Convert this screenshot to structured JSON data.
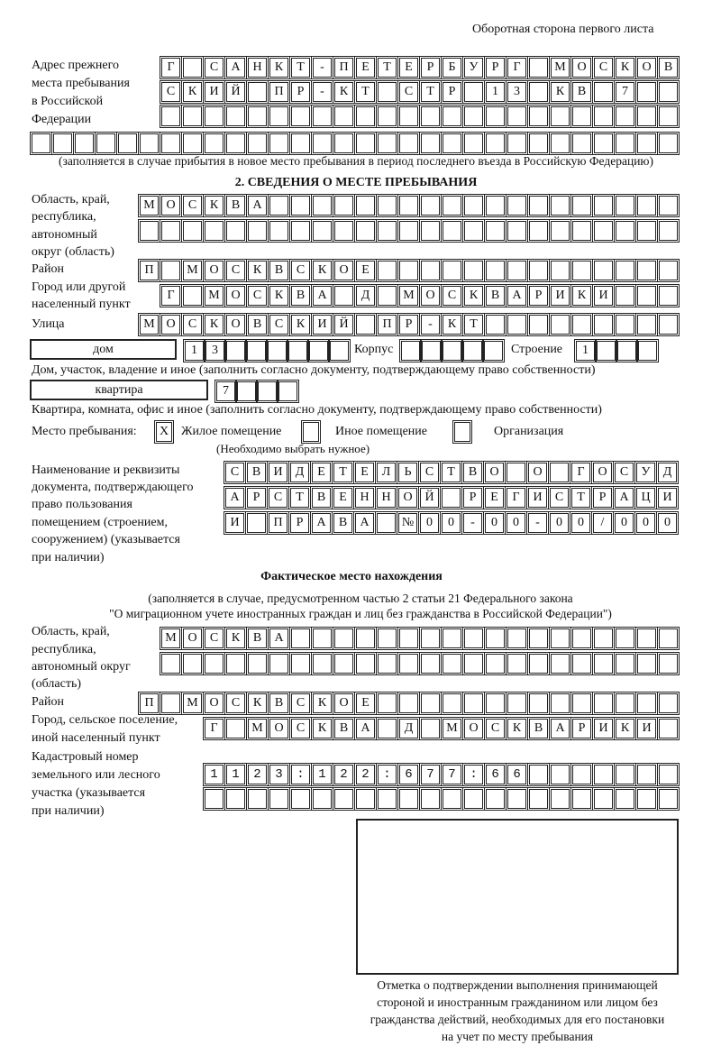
{
  "header": "Оборотная сторона первого листа",
  "prev_address": {
    "label": [
      "Адрес прежнего",
      "места пребывания",
      "в Российской",
      "Федерации"
    ],
    "rows": [
      "Г САНКТ-ПЕТЕРБУРГ МОСКОВ",
      "СКИЙ ПР-КТ СТР 13 КВ 7",
      "",
      ""
    ],
    "note": "(заполняется в случае прибытия в новое место пребывания в период последнего въезда в Российскую Федерацию)"
  },
  "stay": {
    "title": "2. СВЕДЕНИЯ О МЕСТЕ ПРЕБЫВАНИЯ",
    "region_label": [
      "Область, край,",
      "республика,",
      "автономный",
      "округ (область)"
    ],
    "region_rows": [
      "МОСКВА",
      ""
    ],
    "district_label": "Район",
    "district": "П МОСКВСКОЕ",
    "city_label": [
      "Город или другой",
      "населенный пункт"
    ],
    "city": "Г МОСКВА Д МОСКВАРИКИ",
    "street_label": "Улица",
    "street": "МОСКОВСКИЙ ПР-КТ",
    "house_type": "дом",
    "house": "13",
    "korpus_label": "Корпус",
    "korpus": "",
    "building_label": "Строение",
    "building": "1",
    "house_caption": "Дом, участок, владение и иное (заполнить согласно документу, подтверждающему право собственности)",
    "apt_type": "квартира",
    "apt": "7",
    "apt_caption": "Квартира, комната, офис и иное (заполнить согласно документу, подтверждающему право собственности)",
    "place_label": "Место пребывания:",
    "options": [
      {
        "label": "Жилое помещение",
        "checked": "X"
      },
      {
        "label": "Иное помещение",
        "checked": ""
      },
      {
        "label": "Организация",
        "checked": ""
      }
    ],
    "choose_note": "(Необходимо выбрать нужное)",
    "doc_label": [
      "Наименование и реквизиты",
      "документа, подтверждающего",
      "право пользования",
      "помещением (строением,",
      "сооружением) (указывается",
      "при наличии)"
    ],
    "doc_rows": [
      "СВИДЕТЕЛЬСТВО О ГОСУД",
      "АРСТВЕННОЙ РЕГИСТРАЦИ",
      "И ПРАВА №00-00-00/000"
    ]
  },
  "actual": {
    "title": "Фактическое место нахождения",
    "note": [
      "(заполняется в случае, предусмотренном частью 2 статьи 21 Федерального закона",
      "\"О миграционном учете иностранных граждан и лиц без гражданства в Российской Федерации\")"
    ],
    "region_label": [
      "Область, край,",
      "республика,",
      "автономный округ",
      "(область)"
    ],
    "region_rows": [
      "МОСКВА",
      ""
    ],
    "district_label": "Район",
    "district": "П МОСКВСКОЕ",
    "city_label": [
      "Город, сельское поселение,",
      "иной населенный пункт"
    ],
    "city": "Г МОСКВА Д МОСКВАРИКИ",
    "cadastral_label": [
      "Кадастровый номер",
      "земельного или лесного",
      "участка (указывается",
      "при наличии)"
    ],
    "cadastral_rows": [
      "1123:122:677:66",
      ""
    ]
  },
  "stamp_caption": [
    "Отметка о подтверждении выполнения принимающей",
    "стороной и иностранным гражданином или лицом без",
    "гражданства действий, необходимых для его постановки",
    "на учет по месту пребывания"
  ]
}
